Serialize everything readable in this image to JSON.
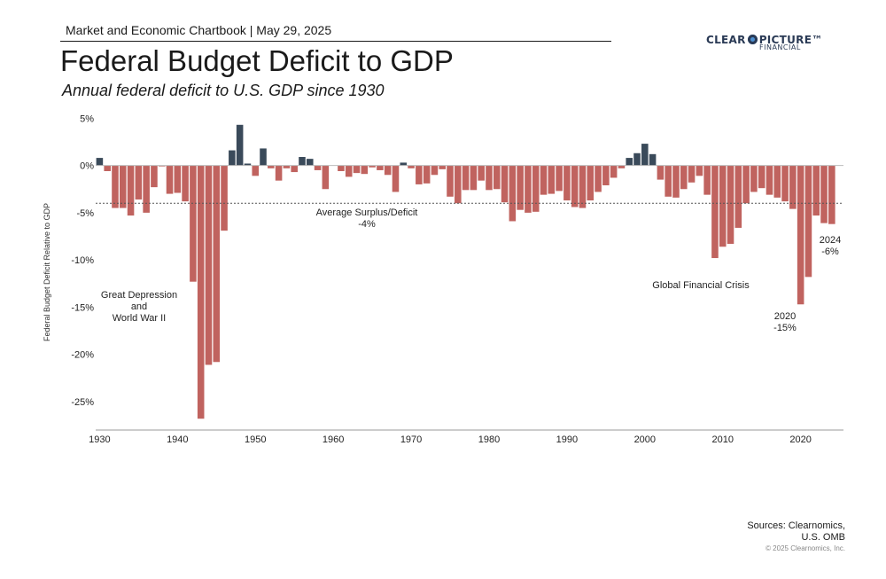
{
  "header": {
    "publication": "Market and Economic Chartbook | May 29, 2025",
    "logo_main": "CLEAR PICTURE",
    "logo_left": "CLEAR",
    "logo_right": "PICTURE™",
    "logo_sub": "FINANCIAL"
  },
  "footer": {
    "sources_line1": "Sources: Clearnomics,",
    "sources_line2": "U.S. OMB",
    "copyright": "© 2025 Clearnomics, Inc."
  },
  "colors": {
    "deficit": "#c0635f",
    "surplus": "#3a4a5a",
    "axis": "#999999",
    "average_line": "#555555"
  },
  "chart_data": {
    "type": "bar",
    "title": "Federal Budget Deficit to GDP",
    "subtitle": "Annual federal deficit to U.S. GDP since 1930",
    "ylabel": "Federal Budget Deficit Relative to GDP",
    "xlabel": "",
    "ylim": [
      -28,
      5.5
    ],
    "xlim": [
      1929.5,
      2025.5
    ],
    "yticks": [
      5,
      0,
      -5,
      -10,
      -15,
      -20,
      -25
    ],
    "ytick_labels": [
      "5%",
      "0%",
      "-5%",
      "-10%",
      "-15%",
      "-20%",
      "-25%"
    ],
    "xticks": [
      1930,
      1940,
      1950,
      1960,
      1970,
      1980,
      1990,
      2000,
      2010,
      2020
    ],
    "xtick_labels": [
      "1930",
      "1940",
      "1950",
      "1960",
      "1970",
      "1980",
      "1990",
      "2000",
      "2010",
      "2020"
    ],
    "grid": false,
    "average_value": -4,
    "x": [
      1930,
      1931,
      1932,
      1933,
      1934,
      1935,
      1936,
      1937,
      1938,
      1939,
      1940,
      1941,
      1942,
      1943,
      1944,
      1945,
      1946,
      1947,
      1948,
      1949,
      1950,
      1951,
      1952,
      1953,
      1954,
      1955,
      1956,
      1957,
      1958,
      1959,
      1960,
      1961,
      1962,
      1963,
      1964,
      1965,
      1966,
      1967,
      1968,
      1969,
      1970,
      1971,
      1972,
      1973,
      1974,
      1975,
      1976,
      1977,
      1978,
      1979,
      1980,
      1981,
      1982,
      1983,
      1984,
      1985,
      1986,
      1987,
      1988,
      1989,
      1990,
      1991,
      1992,
      1993,
      1994,
      1995,
      1996,
      1997,
      1998,
      1999,
      2000,
      2001,
      2002,
      2003,
      2004,
      2005,
      2006,
      2007,
      2008,
      2009,
      2010,
      2011,
      2012,
      2013,
      2014,
      2015,
      2016,
      2017,
      2018,
      2019,
      2020,
      2021,
      2022,
      2023,
      2024
    ],
    "values": [
      0.8,
      -0.6,
      -4.5,
      -4.5,
      -5.3,
      -3.6,
      -5.0,
      -2.3,
      -0.1,
      -3.0,
      -2.9,
      -3.8,
      -12.3,
      -26.8,
      -21.1,
      -20.8,
      -6.9,
      1.6,
      4.3,
      0.2,
      -1.1,
      1.8,
      -0.3,
      -1.6,
      -0.3,
      -0.7,
      0.9,
      0.7,
      -0.5,
      -2.5,
      0.0,
      -0.6,
      -1.2,
      -0.8,
      -0.9,
      -0.2,
      -0.5,
      -1.0,
      -2.8,
      0.3,
      -0.3,
      -2.0,
      -1.9,
      -1.0,
      -0.4,
      -3.3,
      -4.0,
      -2.6,
      -2.6,
      -1.6,
      -2.6,
      -2.5,
      -3.9,
      -5.9,
      -4.7,
      -5.0,
      -4.9,
      -3.1,
      -3.0,
      -2.7,
      -3.7,
      -4.4,
      -4.5,
      -3.7,
      -2.8,
      -2.1,
      -1.3,
      -0.3,
      0.8,
      1.3,
      2.3,
      1.2,
      -1.5,
      -3.3,
      -3.4,
      -2.5,
      -1.8,
      -1.1,
      -3.1,
      -9.8,
      -8.6,
      -8.3,
      -6.6,
      -4.0,
      -2.8,
      -2.4,
      -3.1,
      -3.4,
      -3.8,
      -4.6,
      -14.7,
      -11.8,
      -5.3,
      -6.1,
      -6.2
    ],
    "annotations": [
      {
        "id": "avg",
        "lines": [
          "Average Surplus/Deficit",
          "-4%"
        ]
      },
      {
        "id": "gd",
        "lines": [
          "Great Depression",
          "and",
          "World War II"
        ]
      },
      {
        "id": "gfc",
        "lines": [
          "Global Financial Crisis"
        ]
      },
      {
        "id": "y2020",
        "lines": [
          "2020",
          "-15%"
        ]
      },
      {
        "id": "y2024",
        "lines": [
          "2024",
          "-6%"
        ]
      }
    ]
  }
}
